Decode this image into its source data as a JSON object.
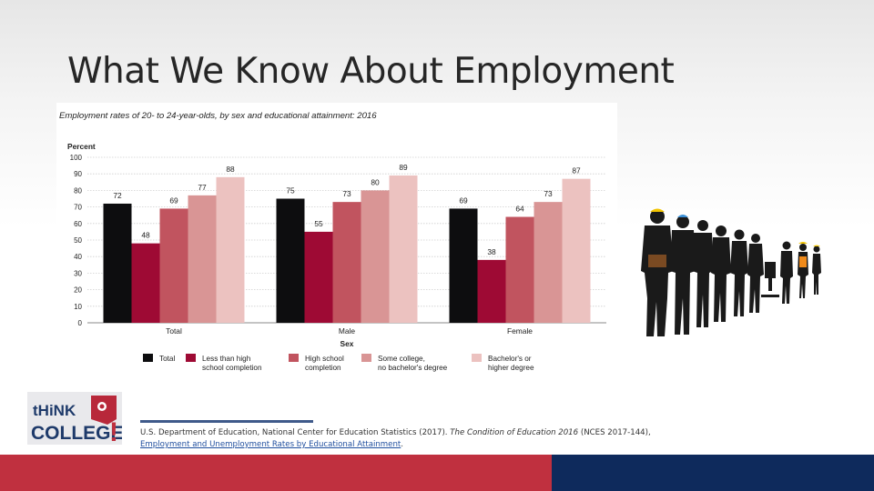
{
  "slide": {
    "title": "What We Know About Employment"
  },
  "chart_data": {
    "type": "bar",
    "title": "Employment rates of 20- to 24-year-olds, by sex and educational attainment: 2016",
    "ylabel": "Percent",
    "xlabel": "Sex",
    "ylim": [
      0,
      100
    ],
    "yticks": [
      0,
      10,
      20,
      30,
      40,
      50,
      60,
      70,
      80,
      90,
      100
    ],
    "categories": [
      "Total",
      "Male",
      "Female"
    ],
    "legend_position": "bottom",
    "grid": true,
    "series": [
      {
        "name": "Total",
        "color": "#0d0d0f",
        "values": [
          72,
          75,
          69
        ]
      },
      {
        "name": "Less than high school completion",
        "color": "#9e0a34",
        "values": [
          48,
          55,
          38
        ]
      },
      {
        "name": "High school completion",
        "color": "#c1545f",
        "values": [
          69,
          73,
          64
        ]
      },
      {
        "name": "Some college, no bachelor's degree",
        "color": "#d99595",
        "values": [
          77,
          80,
          73
        ]
      },
      {
        "name": "Bachelor's or higher degree",
        "color": "#ecc2c0",
        "values": [
          88,
          89,
          87
        ]
      }
    ],
    "legend_lines": [
      [
        "Total"
      ],
      [
        "Less than high",
        "school completion"
      ],
      [
        "High school",
        "completion"
      ],
      [
        "Some college,",
        "no bachelor's degree"
      ],
      [
        "Bachelor's or",
        "higher degree"
      ]
    ]
  },
  "logo": {
    "line1": "tHiNK",
    "line2": "COLLEGE",
    "mark": "!"
  },
  "reference": {
    "part1": "U.S. Department of Education, National Center for Education Statistics (2017). ",
    "italic": "The Condition of Education 2016",
    "part2": " (NCES 2017-144), ",
    "link": "Employment and Unemployment Rates by Educational Attainment",
    "end": "."
  },
  "colors": {
    "footer_red": "#c0303f",
    "footer_blue": "#0e2a5c"
  },
  "icons": {
    "workers": "workers-silhouette-icon",
    "logo": "think-college-logo-icon"
  }
}
